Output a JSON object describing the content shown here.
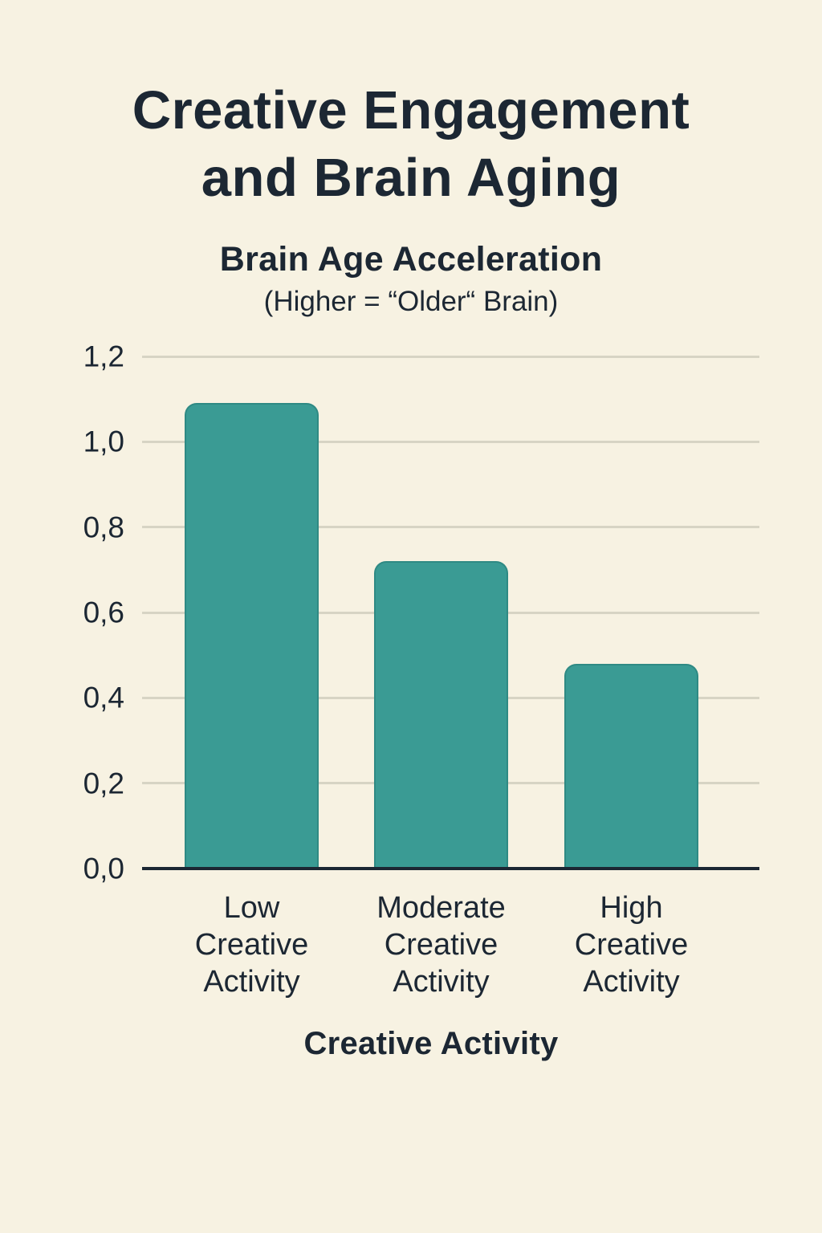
{
  "page": {
    "title_line1": "Creative Engagement",
    "title_line2": "and Brain Aging"
  },
  "colors": {
    "bg": "#f7f2e2",
    "ink": "#1c2733",
    "teal": "#3a9b94",
    "teal-border": "#2f8a84",
    "grid": "#d7d4c4",
    "axis": "#1c2733"
  },
  "chart_data": {
    "type": "bar",
    "title": "Brain Age Acceleration",
    "title_note": "(Higher = “Older“ Brain)",
    "xlabel": "Creative Activity",
    "ylabel": "",
    "ylim": [
      0,
      1.2
    ],
    "grid": "horizontal",
    "legend": "none",
    "decimal_separator": ",",
    "categories": [
      "Low Creative Activity",
      "Moderate Creative Activity",
      "High Creative Activity"
    ],
    "category_lines": [
      [
        "Low",
        "Creative",
        "Activity"
      ],
      [
        "Moderate",
        "Creative",
        "Activity"
      ],
      [
        "High",
        "Creative",
        "Activity"
      ]
    ],
    "values": [
      1.09,
      0.72,
      0.48
    ],
    "bar_color": "#3a9b94",
    "yticks": [
      {
        "value": 0.0,
        "label": "0,0"
      },
      {
        "value": 0.2,
        "label": "0,2"
      },
      {
        "value": 0.4,
        "label": "0,4"
      },
      {
        "value": 0.6,
        "label": "0,6"
      },
      {
        "value": 0.8,
        "label": "0,8"
      },
      {
        "value": 1.0,
        "label": "1,0"
      },
      {
        "value": 1.2,
        "label": "1,2"
      }
    ]
  }
}
